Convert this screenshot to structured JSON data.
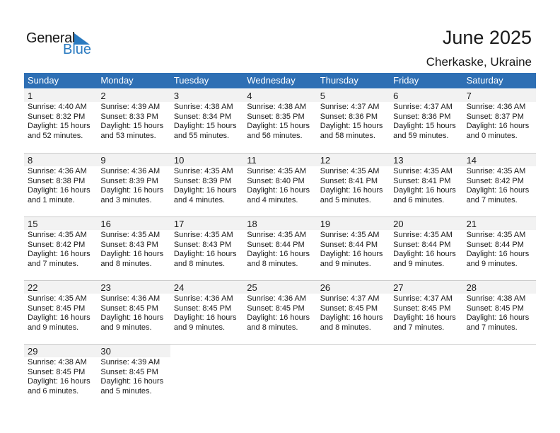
{
  "logo": {
    "text1": "General",
    "text2": "Blue",
    "color": "#2a7ac0"
  },
  "header": {
    "title": "June 2025",
    "location": "Cherkaske, Ukraine"
  },
  "colors": {
    "header_bg": "#2e6fb4",
    "date_row_bg": "#f2f2f2"
  },
  "weekdays": [
    "Sunday",
    "Monday",
    "Tuesday",
    "Wednesday",
    "Thursday",
    "Friday",
    "Saturday"
  ],
  "weeks": [
    [
      {
        "day": "1",
        "sunrise": "Sunrise: 4:40 AM",
        "sunset": "Sunset: 8:32 PM",
        "daylight": "Daylight: 15 hours",
        "minutes": "and 52 minutes."
      },
      {
        "day": "2",
        "sunrise": "Sunrise: 4:39 AM",
        "sunset": "Sunset: 8:33 PM",
        "daylight": "Daylight: 15 hours",
        "minutes": "and 53 minutes."
      },
      {
        "day": "3",
        "sunrise": "Sunrise: 4:38 AM",
        "sunset": "Sunset: 8:34 PM",
        "daylight": "Daylight: 15 hours",
        "minutes": "and 55 minutes."
      },
      {
        "day": "4",
        "sunrise": "Sunrise: 4:38 AM",
        "sunset": "Sunset: 8:35 PM",
        "daylight": "Daylight: 15 hours",
        "minutes": "and 56 minutes."
      },
      {
        "day": "5",
        "sunrise": "Sunrise: 4:37 AM",
        "sunset": "Sunset: 8:36 PM",
        "daylight": "Daylight: 15 hours",
        "minutes": "and 58 minutes."
      },
      {
        "day": "6",
        "sunrise": "Sunrise: 4:37 AM",
        "sunset": "Sunset: 8:36 PM",
        "daylight": "Daylight: 15 hours",
        "minutes": "and 59 minutes."
      },
      {
        "day": "7",
        "sunrise": "Sunrise: 4:36 AM",
        "sunset": "Sunset: 8:37 PM",
        "daylight": "Daylight: 16 hours",
        "minutes": "and 0 minutes."
      }
    ],
    [
      {
        "day": "8",
        "sunrise": "Sunrise: 4:36 AM",
        "sunset": "Sunset: 8:38 PM",
        "daylight": "Daylight: 16 hours",
        "minutes": "and 1 minute."
      },
      {
        "day": "9",
        "sunrise": "Sunrise: 4:36 AM",
        "sunset": "Sunset: 8:39 PM",
        "daylight": "Daylight: 16 hours",
        "minutes": "and 3 minutes."
      },
      {
        "day": "10",
        "sunrise": "Sunrise: 4:35 AM",
        "sunset": "Sunset: 8:39 PM",
        "daylight": "Daylight: 16 hours",
        "minutes": "and 4 minutes."
      },
      {
        "day": "11",
        "sunrise": "Sunrise: 4:35 AM",
        "sunset": "Sunset: 8:40 PM",
        "daylight": "Daylight: 16 hours",
        "minutes": "and 4 minutes."
      },
      {
        "day": "12",
        "sunrise": "Sunrise: 4:35 AM",
        "sunset": "Sunset: 8:41 PM",
        "daylight": "Daylight: 16 hours",
        "minutes": "and 5 minutes."
      },
      {
        "day": "13",
        "sunrise": "Sunrise: 4:35 AM",
        "sunset": "Sunset: 8:41 PM",
        "daylight": "Daylight: 16 hours",
        "minutes": "and 6 minutes."
      },
      {
        "day": "14",
        "sunrise": "Sunrise: 4:35 AM",
        "sunset": "Sunset: 8:42 PM",
        "daylight": "Daylight: 16 hours",
        "minutes": "and 7 minutes."
      }
    ],
    [
      {
        "day": "15",
        "sunrise": "Sunrise: 4:35 AM",
        "sunset": "Sunset: 8:42 PM",
        "daylight": "Daylight: 16 hours",
        "minutes": "and 7 minutes."
      },
      {
        "day": "16",
        "sunrise": "Sunrise: 4:35 AM",
        "sunset": "Sunset: 8:43 PM",
        "daylight": "Daylight: 16 hours",
        "minutes": "and 8 minutes."
      },
      {
        "day": "17",
        "sunrise": "Sunrise: 4:35 AM",
        "sunset": "Sunset: 8:43 PM",
        "daylight": "Daylight: 16 hours",
        "minutes": "and 8 minutes."
      },
      {
        "day": "18",
        "sunrise": "Sunrise: 4:35 AM",
        "sunset": "Sunset: 8:44 PM",
        "daylight": "Daylight: 16 hours",
        "minutes": "and 8 minutes."
      },
      {
        "day": "19",
        "sunrise": "Sunrise: 4:35 AM",
        "sunset": "Sunset: 8:44 PM",
        "daylight": "Daylight: 16 hours",
        "minutes": "and 9 minutes."
      },
      {
        "day": "20",
        "sunrise": "Sunrise: 4:35 AM",
        "sunset": "Sunset: 8:44 PM",
        "daylight": "Daylight: 16 hours",
        "minutes": "and 9 minutes."
      },
      {
        "day": "21",
        "sunrise": "Sunrise: 4:35 AM",
        "sunset": "Sunset: 8:44 PM",
        "daylight": "Daylight: 16 hours",
        "minutes": "and 9 minutes."
      }
    ],
    [
      {
        "day": "22",
        "sunrise": "Sunrise: 4:35 AM",
        "sunset": "Sunset: 8:45 PM",
        "daylight": "Daylight: 16 hours",
        "minutes": "and 9 minutes."
      },
      {
        "day": "23",
        "sunrise": "Sunrise: 4:36 AM",
        "sunset": "Sunset: 8:45 PM",
        "daylight": "Daylight: 16 hours",
        "minutes": "and 9 minutes."
      },
      {
        "day": "24",
        "sunrise": "Sunrise: 4:36 AM",
        "sunset": "Sunset: 8:45 PM",
        "daylight": "Daylight: 16 hours",
        "minutes": "and 9 minutes."
      },
      {
        "day": "25",
        "sunrise": "Sunrise: 4:36 AM",
        "sunset": "Sunset: 8:45 PM",
        "daylight": "Daylight: 16 hours",
        "minutes": "and 8 minutes."
      },
      {
        "day": "26",
        "sunrise": "Sunrise: 4:37 AM",
        "sunset": "Sunset: 8:45 PM",
        "daylight": "Daylight: 16 hours",
        "minutes": "and 8 minutes."
      },
      {
        "day": "27",
        "sunrise": "Sunrise: 4:37 AM",
        "sunset": "Sunset: 8:45 PM",
        "daylight": "Daylight: 16 hours",
        "minutes": "and 7 minutes."
      },
      {
        "day": "28",
        "sunrise": "Sunrise: 4:38 AM",
        "sunset": "Sunset: 8:45 PM",
        "daylight": "Daylight: 16 hours",
        "minutes": "and 7 minutes."
      }
    ],
    [
      {
        "day": "29",
        "sunrise": "Sunrise: 4:38 AM",
        "sunset": "Sunset: 8:45 PM",
        "daylight": "Daylight: 16 hours",
        "minutes": "and 6 minutes."
      },
      {
        "day": "30",
        "sunrise": "Sunrise: 4:39 AM",
        "sunset": "Sunset: 8:45 PM",
        "daylight": "Daylight: 16 hours",
        "minutes": "and 5 minutes."
      }
    ]
  ]
}
